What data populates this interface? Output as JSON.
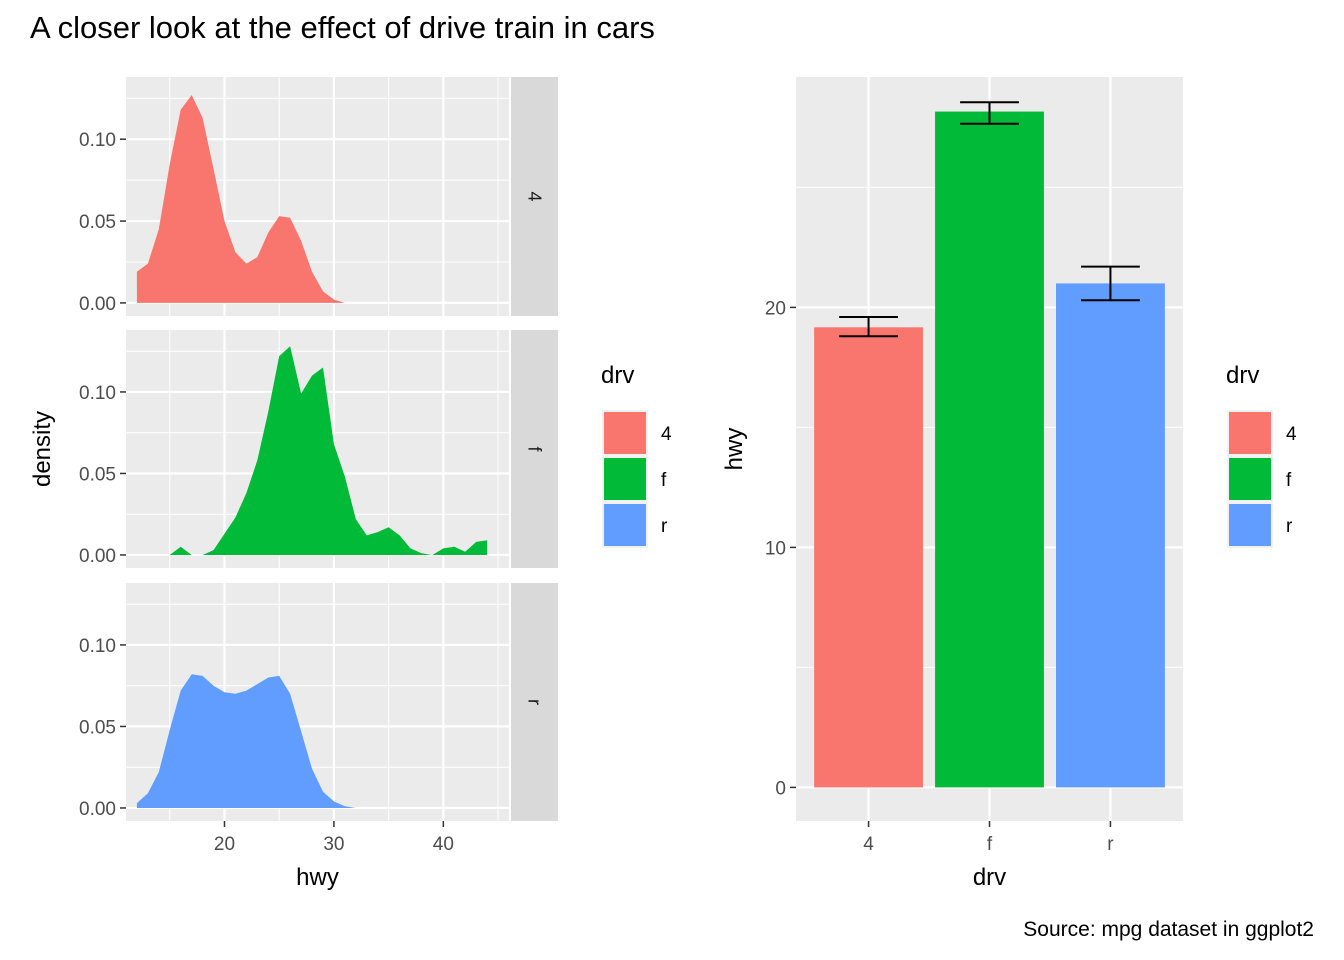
{
  "title": "A closer look at the effect of drive train in cars",
  "caption": "Source: mpg dataset in ggplot2",
  "colors": {
    "4": "#F8766D",
    "f": "#00BA38",
    "r": "#619CFF",
    "panel": "#EBEBEB",
    "strip": "#D9D9D9",
    "grid": "#FFFFFF",
    "axis_text": "#4D4D4D"
  },
  "chart_data": [
    {
      "type": "area",
      "subtype": "density (faceted by drv)",
      "xlabel": "hwy",
      "ylabel": "density",
      "xlim": [
        11.0,
        46.0
      ],
      "ylim": [
        -0.008,
        0.138
      ],
      "xticks": [
        20,
        30,
        40
      ],
      "yticks": [
        0.0,
        0.05,
        0.1
      ],
      "ytick_labels": [
        "0.00",
        "0.05",
        "0.10"
      ],
      "grid": true,
      "legend": {
        "title": "drv",
        "position": "right",
        "entries": [
          "4",
          "f",
          "r"
        ]
      },
      "facets": [
        {
          "strip": "4",
          "x": [
            12,
            13,
            14,
            15,
            16,
            17,
            18,
            19,
            20,
            21,
            22,
            23,
            24,
            25,
            26,
            27,
            28,
            29,
            30,
            31
          ],
          "y": [
            0.019,
            0.024,
            0.045,
            0.085,
            0.118,
            0.127,
            0.113,
            0.082,
            0.05,
            0.031,
            0.024,
            0.028,
            0.043,
            0.053,
            0.052,
            0.038,
            0.019,
            0.007,
            0.002,
            0.0
          ]
        },
        {
          "strip": "f",
          "x": [
            15,
            16,
            17,
            18,
            19,
            20,
            21,
            22,
            23,
            24,
            25,
            26,
            27,
            28,
            29,
            30,
            31,
            32,
            33,
            34,
            35,
            36,
            37,
            38,
            39,
            40,
            41,
            42,
            43,
            44
          ],
          "y": [
            0.0,
            0.005,
            0.0,
            0.0,
            0.003,
            0.013,
            0.023,
            0.038,
            0.058,
            0.088,
            0.122,
            0.128,
            0.099,
            0.11,
            0.115,
            0.068,
            0.048,
            0.022,
            0.012,
            0.014,
            0.017,
            0.012,
            0.004,
            0.001,
            0.0,
            0.004,
            0.005,
            0.002,
            0.008,
            0.009
          ]
        },
        {
          "strip": "r",
          "x": [
            12,
            13,
            14,
            15,
            16,
            17,
            18,
            19,
            20,
            21,
            22,
            23,
            24,
            25,
            26,
            27,
            28,
            29,
            30,
            31,
            32
          ],
          "y": [
            0.003,
            0.009,
            0.022,
            0.048,
            0.072,
            0.082,
            0.081,
            0.075,
            0.071,
            0.07,
            0.072,
            0.076,
            0.08,
            0.081,
            0.07,
            0.047,
            0.024,
            0.01,
            0.004,
            0.001,
            0.0
          ]
        }
      ]
    },
    {
      "type": "bar",
      "subtype": "bar with error bars",
      "categories": [
        "4",
        "f",
        "r"
      ],
      "values": [
        19.17,
        28.16,
        21.0
      ],
      "error_low": [
        18.8,
        27.65,
        20.3
      ],
      "error_high": [
        19.6,
        28.55,
        21.7
      ],
      "xlabel": "drv",
      "ylabel": "hwy",
      "ylim": [
        -1.4,
        29.6
      ],
      "yticks": [
        0,
        10,
        20
      ],
      "grid": true,
      "legend": {
        "title": "drv",
        "position": "right",
        "entries": [
          "4",
          "f",
          "r"
        ]
      }
    }
  ]
}
